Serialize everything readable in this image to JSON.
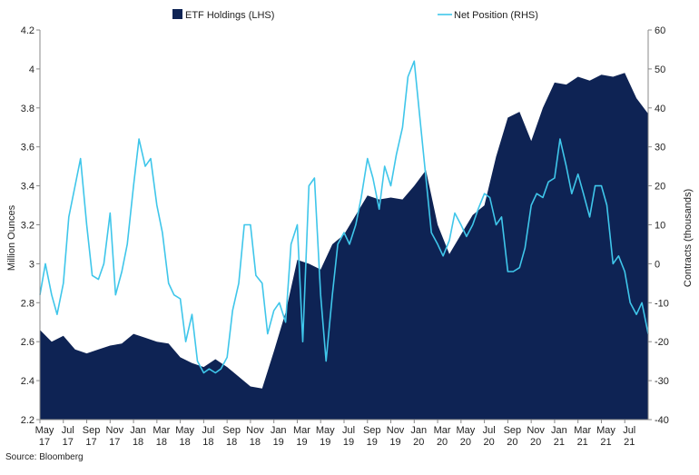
{
  "chart_data": {
    "type": "area+line",
    "legend": [
      {
        "name": "ETF Holdings (LHS)",
        "color": "#0e2354",
        "kind": "area"
      },
      {
        "name": "Net Position (RHS)",
        "color": "#3fc6ea",
        "kind": "line"
      }
    ],
    "legend_placement": "top",
    "ylabel_left": "Million Ounces",
    "ylabel_right": "Contracts (thousands)",
    "ylim_left": [
      2.2,
      4.2
    ],
    "ylim_right": [
      -40,
      60
    ],
    "yticks_left": [
      "2.2",
      "2.4",
      "2.6",
      "2.8",
      "3",
      "3.2",
      "3.4",
      "3.6",
      "3.8",
      "4",
      "4.2"
    ],
    "yticks_right": [
      "-40",
      "-30",
      "-20",
      "-10",
      "0",
      "10",
      "20",
      "30",
      "40",
      "50",
      "60"
    ],
    "x_ticks": [
      [
        "May",
        "17"
      ],
      [
        "Jul",
        "17"
      ],
      [
        "Sep",
        "17"
      ],
      [
        "Nov",
        "17"
      ],
      [
        "Jan",
        "18"
      ],
      [
        "Mar",
        "18"
      ],
      [
        "May",
        "18"
      ],
      [
        "Jul",
        "18"
      ],
      [
        "Sep",
        "18"
      ],
      [
        "Nov",
        "18"
      ],
      [
        "Jan",
        "19"
      ],
      [
        "Mar",
        "19"
      ],
      [
        "May",
        "19"
      ],
      [
        "Jul",
        "19"
      ],
      [
        "Sep",
        "19"
      ],
      [
        "Nov",
        "19"
      ],
      [
        "Jan",
        "20"
      ],
      [
        "Mar",
        "20"
      ],
      [
        "May",
        "20"
      ],
      [
        "Jul",
        "20"
      ],
      [
        "Sep",
        "20"
      ],
      [
        "Nov",
        "20"
      ],
      [
        "Jan",
        "21"
      ],
      [
        "Mar",
        "21"
      ],
      [
        "May",
        "21"
      ],
      [
        "Jul",
        "21"
      ]
    ],
    "x_domain": [
      "2017-05",
      "2021-09"
    ],
    "grid": false,
    "series": [
      {
        "name": "ETF Holdings (LHS)",
        "axis": "left",
        "x": [
          "2017-05",
          "2017-06",
          "2017-07",
          "2017-08",
          "2017-09",
          "2017-10",
          "2017-11",
          "2017-12",
          "2018-01",
          "2018-02",
          "2018-03",
          "2018-04",
          "2018-05",
          "2018-06",
          "2018-07",
          "2018-08",
          "2018-09",
          "2018-10",
          "2018-11",
          "2018-12",
          "2019-01",
          "2019-02",
          "2019-03",
          "2019-04",
          "2019-05",
          "2019-06",
          "2019-07",
          "2019-08",
          "2019-09",
          "2019-10",
          "2019-11",
          "2019-12",
          "2020-01",
          "2020-02",
          "2020-03",
          "2020-04",
          "2020-05",
          "2020-06",
          "2020-07",
          "2020-08",
          "2020-09",
          "2020-10",
          "2020-11",
          "2020-12",
          "2021-01",
          "2021-02",
          "2021-03",
          "2021-04",
          "2021-05",
          "2021-06",
          "2021-07",
          "2021-08",
          "2021-09"
        ],
        "values": [
          2.66,
          2.6,
          2.63,
          2.56,
          2.54,
          2.56,
          2.58,
          2.59,
          2.64,
          2.62,
          2.6,
          2.59,
          2.52,
          2.49,
          2.47,
          2.51,
          2.47,
          2.42,
          2.37,
          2.36,
          2.55,
          2.75,
          3.02,
          3.0,
          2.97,
          3.1,
          3.15,
          3.25,
          3.35,
          3.33,
          3.34,
          3.33,
          3.4,
          3.48,
          3.2,
          3.05,
          3.15,
          3.25,
          3.3,
          3.55,
          3.75,
          3.78,
          3.63,
          3.8,
          3.93,
          3.92,
          3.96,
          3.94,
          3.97,
          3.96,
          3.98,
          3.85,
          3.77
        ]
      },
      {
        "name": "Net Position (RHS)",
        "axis": "right",
        "x": [
          "2017-05",
          "2017-05-15",
          "2017-06",
          "2017-06-15",
          "2017-07",
          "2017-07-15",
          "2017-08",
          "2017-08-15",
          "2017-09",
          "2017-09-15",
          "2017-10",
          "2017-10-15",
          "2017-11",
          "2017-11-15",
          "2017-12",
          "2017-12-15",
          "2018-01",
          "2018-01-15",
          "2018-02",
          "2018-02-15",
          "2018-03",
          "2018-03-15",
          "2018-04",
          "2018-04-15",
          "2018-05",
          "2018-05-15",
          "2018-06",
          "2018-06-15",
          "2018-07",
          "2018-07-15",
          "2018-08",
          "2018-08-15",
          "2018-09",
          "2018-09-15",
          "2018-10",
          "2018-10-15",
          "2018-11",
          "2018-11-15",
          "2018-12",
          "2018-12-15",
          "2019-01",
          "2019-01-15",
          "2019-02",
          "2019-02-15",
          "2019-03",
          "2019-03-15",
          "2019-04",
          "2019-04-15",
          "2019-05",
          "2019-05-15",
          "2019-06",
          "2019-06-15",
          "2019-07",
          "2019-07-15",
          "2019-08",
          "2019-08-15",
          "2019-09",
          "2019-09-15",
          "2019-10",
          "2019-10-15",
          "2019-11",
          "2019-11-15",
          "2019-12",
          "2019-12-15",
          "2020-01",
          "2020-01-15",
          "2020-02",
          "2020-02-15",
          "2020-03",
          "2020-03-15",
          "2020-04",
          "2020-04-15",
          "2020-05",
          "2020-05-15",
          "2020-06",
          "2020-06-15",
          "2020-07",
          "2020-07-15",
          "2020-08",
          "2020-08-15",
          "2020-09",
          "2020-09-15",
          "2020-10",
          "2020-10-15",
          "2020-11",
          "2020-11-15",
          "2020-12",
          "2020-12-15",
          "2021-01",
          "2021-01-15",
          "2021-02",
          "2021-02-15",
          "2021-03",
          "2021-03-15",
          "2021-04",
          "2021-04-15",
          "2021-05",
          "2021-05-15",
          "2021-06",
          "2021-06-15",
          "2021-07",
          "2021-07-15",
          "2021-08",
          "2021-08-15",
          "2021-09"
        ],
        "values": [
          -8,
          0,
          -8,
          -13,
          -5,
          12,
          20,
          27,
          10,
          -3,
          -4,
          0,
          13,
          -8,
          -2,
          5,
          20,
          32,
          25,
          27,
          15,
          8,
          -5,
          -8,
          -9,
          -20,
          -13,
          -25,
          -28,
          -27,
          -28,
          -27,
          -24,
          -12,
          -5,
          10,
          10,
          -3,
          -5,
          -18,
          -12,
          -10,
          -15,
          5,
          10,
          -20,
          20,
          22,
          -8,
          -25,
          -8,
          5,
          8,
          5,
          10,
          17,
          27,
          22,
          14,
          25,
          20,
          28,
          35,
          48,
          52,
          38,
          22,
          8,
          5,
          2,
          6,
          13,
          10,
          7,
          10,
          14,
          18,
          17,
          10,
          12,
          -2,
          -2,
          -1,
          4,
          15,
          18,
          17,
          21,
          22,
          32,
          25,
          18,
          23,
          18,
          12,
          20,
          20,
          15,
          0,
          2,
          -2,
          -10,
          -13,
          -10,
          -18
        ]
      }
    ],
    "source": "Source: Bloomberg"
  }
}
